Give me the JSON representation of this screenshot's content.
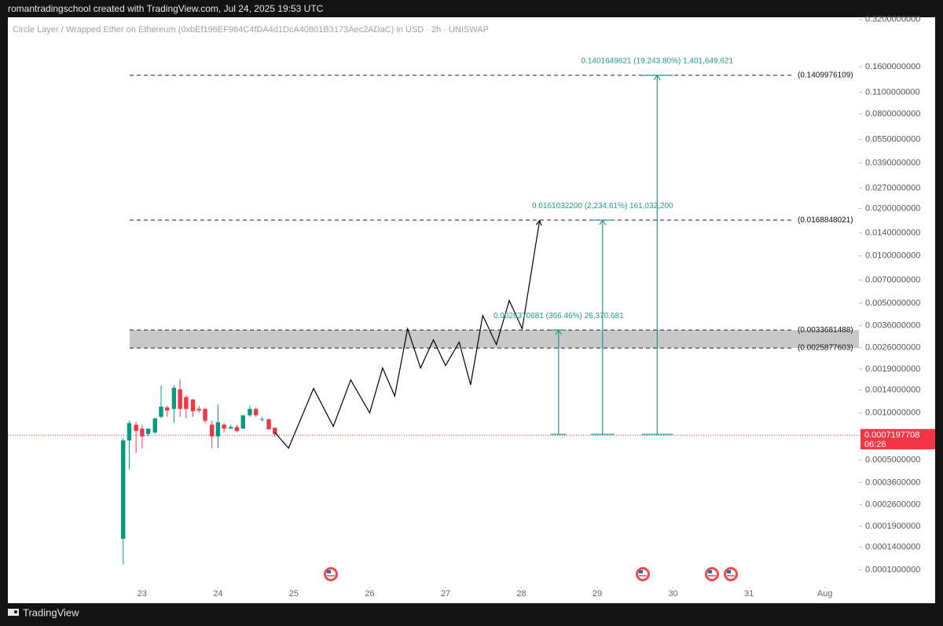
{
  "header": "romantradingschool created with TradingView.com, Jul 24, 2025 19:53 UTC",
  "footer": "TradingView",
  "chart_data": {
    "type": "candlestick",
    "title": "Circle Layer / Wrapped Ether on Ethereum (0xbEf196EF984C4fDA4d1DcA40801B3173Aec2ADaC) in USD · 2h · UNISWAP",
    "xlim": [
      21.23,
      32.47
    ],
    "xticks": [
      23,
      24,
      25,
      26,
      27,
      28,
      29,
      30,
      31,
      {
        "value": 32,
        "label": "Aug"
      }
    ],
    "ylim": [
      8e-05,
      0.33
    ],
    "log_scale": true,
    "yticks": [
      {
        "value": 0.32,
        "label": "0.3200000000"
      },
      {
        "value": 0.16,
        "label": "0.1600000000"
      },
      {
        "value": 0.11,
        "label": "0.1100000000"
      },
      {
        "value": 0.08,
        "label": "0.0800000000"
      },
      {
        "value": 0.055,
        "label": "0.0550000000"
      },
      {
        "value": 0.039,
        "label": "0.0390000000"
      },
      {
        "value": 0.027,
        "label": "0.0270000000"
      },
      {
        "value": 0.02,
        "label": "0.0200000000"
      },
      {
        "value": 0.014,
        "label": "0.0140000000"
      },
      {
        "value": 0.01,
        "label": "0.0100000000"
      },
      {
        "value": 0.007,
        "label": "0.0070000000"
      },
      {
        "value": 0.005,
        "label": "0.0050000000"
      },
      {
        "value": 0.0036,
        "label": "0.0036000000"
      },
      {
        "value": 0.0026,
        "label": "0.0026000000"
      },
      {
        "value": 0.0019,
        "label": "0.0019000000"
      },
      {
        "value": 0.0014,
        "label": "0.0014000000"
      },
      {
        "value": 0.001,
        "label": "0.0010000000"
      },
      {
        "value": 0.0005,
        "label": "0.0005000000"
      },
      {
        "value": 0.00036,
        "label": "0.0003600000"
      },
      {
        "value": 0.00026,
        "label": "0.0002600000"
      },
      {
        "value": 0.00019,
        "label": "0.0001900000"
      },
      {
        "value": 0.00014,
        "label": "0.0001400000"
      },
      {
        "value": 0.0001,
        "label": "0.0001000000"
      }
    ],
    "up_color": "#089981",
    "down_color": "#f23645",
    "x": [
      22.75,
      22.83,
      22.92,
      23.0,
      23.08,
      23.17,
      23.25,
      23.33,
      23.42,
      23.5,
      23.58,
      23.67,
      23.75,
      23.83,
      23.92,
      24.0,
      24.08,
      24.17,
      24.25,
      24.33,
      24.42,
      24.5,
      24.58,
      24.67,
      24.75
    ],
    "open": [
      0.000158,
      0.000668,
      0.000841,
      0.000794,
      0.000733,
      0.00075,
      0.000944,
      0.001084,
      0.001059,
      0.001413,
      0.001259,
      0.001216,
      0.001059,
      0.001059,
      0.000841,
      0.000708,
      0.000841,
      0.000794,
      0.000813,
      0.000794,
      0.000966,
      0.001059,
      0.000912,
      0.000912,
      0.000804
    ],
    "high": [
      0.000692,
      0.000891,
      0.000881,
      0.000841,
      0.000794,
      0.000923,
      0.0015,
      0.001108,
      0.0015,
      0.00164,
      0.0013,
      0.00123,
      0.001108,
      0.001084,
      0.000891,
      0.00113,
      0.000861,
      0.000841,
      0.000841,
      0.000966,
      0.001109,
      0.001084,
      0.000944,
      0.000912,
      0.000804
    ],
    "low": [
      0.000108,
      0.000437,
      0.000556,
      0.000596,
      0.000708,
      0.000733,
      0.000923,
      0.000944,
      0.000861,
      0.000944,
      0.000923,
      0.000944,
      0.001,
      0.000861,
      0.000596,
      0.000596,
      0.00075,
      0.000794,
      0.00075,
      0.000794,
      0.000944,
      0.000944,
      0.000881,
      0.000785,
      0.0007
    ],
    "close": [
      0.000668,
      0.000861,
      0.000767,
      0.000708,
      0.000794,
      0.000923,
      0.001096,
      0.001035,
      0.001445,
      0.001059,
      0.001059,
      0.001023,
      0.001035,
      0.000891,
      0.000708,
      0.000871,
      0.000794,
      0.000813,
      0.000767,
      0.000966,
      0.001059,
      0.000966,
      0.000912,
      0.000785,
      0.000733
    ],
    "projection": {
      "color": "#000000",
      "x": [
        24.75,
        24.93,
        25.26,
        25.52,
        25.75,
        26.0,
        26.17,
        26.33,
        26.5,
        26.67,
        26.84,
        27.0,
        27.18,
        27.33,
        27.49,
        27.67,
        27.84,
        28.01,
        28.24
      ],
      "y": [
        0.00075,
        0.000596,
        0.00143,
        0.00082,
        0.00162,
        0.001,
        0.00193,
        0.00128,
        0.00343,
        0.00193,
        0.00292,
        0.002,
        0.00282,
        0.00151,
        0.00417,
        0.00272,
        0.00519,
        0.00343,
        0.0168
      ]
    },
    "levels": [
      {
        "value": 0.1409976109,
        "label": "(0.1409976109)"
      },
      {
        "value": 0.0168848021,
        "label": "(0.0168848021)"
      },
      {
        "value": 0.0033681488,
        "label": "(0.0033681488)"
      },
      {
        "value": 0.0025877603,
        "label": "(0.0025877603)"
      }
    ],
    "zone_color": "#c8c8c8",
    "measure_color": "#22998a",
    "measures": [
      {
        "x": 28.49,
        "from": 0.00073,
        "to": 0.0033681488,
        "label": "0.0026370681 (366.46%) 26,370,681"
      },
      {
        "x": 29.07,
        "from": 0.00073,
        "to": 0.0168848021,
        "label": "0.0161032200 (2,234.61%) 161,032,200"
      },
      {
        "x": 29.79,
        "from": 0.00073,
        "to": 0.1409976109,
        "label": "0.1401649621 (19,243.80%) 1,401,649,621"
      }
    ],
    "last_price": 0.0007197708,
    "countdown": "06:26",
    "last_price_color": "#f23645"
  }
}
